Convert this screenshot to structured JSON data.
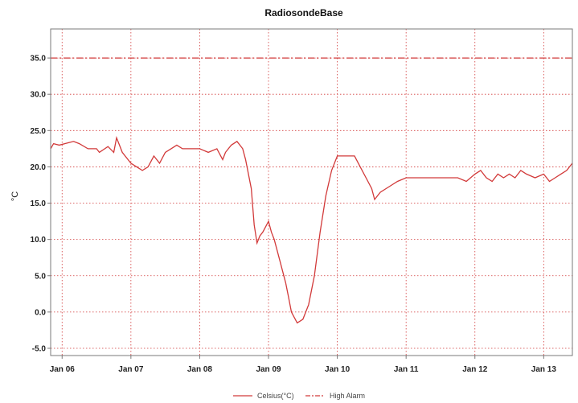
{
  "chart_data": {
    "type": "line",
    "title": "RadiosondeBase",
    "ylabel": "°C",
    "xlabel": "",
    "ylim": [
      -6,
      39
    ],
    "xlim": [
      "2024-01-05T20:00",
      "2024-01-13T10:00"
    ],
    "x_ticks": [
      "Jan 06",
      "Jan 07",
      "Jan 08",
      "Jan 09",
      "Jan 10",
      "Jan 11",
      "Jan 12",
      "Jan 13"
    ],
    "y_ticks": [
      "35.0",
      "30.0",
      "25.0",
      "20.0",
      "15.0",
      "10.0",
      "5.0",
      "0.0",
      "-5.0"
    ],
    "grid": true,
    "legend_position": "bottom",
    "colors": {
      "series": "#d23a3a",
      "alarm": "#d23a3a",
      "grid": "#d23a3a",
      "axis": "#7a7a7a"
    },
    "series": [
      {
        "name": "Celsius(°C)",
        "style": "solid",
        "x": [
          "2024-01-05T20:00",
          "2024-01-05T21:00",
          "2024-01-05T23:00",
          "2024-01-06T04:00",
          "2024-01-06T06:00",
          "2024-01-06T09:00",
          "2024-01-06T12:00",
          "2024-01-06T13:00",
          "2024-01-06T16:00",
          "2024-01-06T18:00",
          "2024-01-06T19:00",
          "2024-01-06T20:00",
          "2024-01-06T21:00",
          "2024-01-07T00:00",
          "2024-01-07T02:00",
          "2024-01-07T04:00",
          "2024-01-07T06:00",
          "2024-01-07T08:00",
          "2024-01-07T10:00",
          "2024-01-07T12:00",
          "2024-01-07T14:00",
          "2024-01-07T16:00",
          "2024-01-07T18:00",
          "2024-01-07T20:00",
          "2024-01-08T00:00",
          "2024-01-08T03:00",
          "2024-01-08T06:00",
          "2024-01-08T08:00",
          "2024-01-08T09:00",
          "2024-01-08T11:00",
          "2024-01-08T13:00",
          "2024-01-08T14:00",
          "2024-01-08T15:00",
          "2024-01-08T16:00",
          "2024-01-08T18:00",
          "2024-01-08T19:00",
          "2024-01-08T20:00",
          "2024-01-08T21:00",
          "2024-01-08T22:00",
          "2024-01-09T00:00",
          "2024-01-09T01:00",
          "2024-01-09T02:00",
          "2024-01-09T04:00",
          "2024-01-09T06:00",
          "2024-01-09T07:00",
          "2024-01-09T08:00",
          "2024-01-09T10:00",
          "2024-01-09T12:00",
          "2024-01-09T14:00",
          "2024-01-09T16:00",
          "2024-01-09T18:00",
          "2024-01-09T20:00",
          "2024-01-09T22:00",
          "2024-01-10T00:00",
          "2024-01-10T02:00",
          "2024-01-10T04:00",
          "2024-01-10T06:00",
          "2024-01-10T08:00",
          "2024-01-10T10:00",
          "2024-01-10T12:00",
          "2024-01-10T13:00",
          "2024-01-10T14:00",
          "2024-01-10T15:00",
          "2024-01-10T17:00",
          "2024-01-10T19:00",
          "2024-01-10T21:00",
          "2024-01-11T00:00",
          "2024-01-11T03:00",
          "2024-01-11T06:00",
          "2024-01-11T09:00",
          "2024-01-11T12:00",
          "2024-01-11T15:00",
          "2024-01-11T18:00",
          "2024-01-11T21:00",
          "2024-01-12T00:00",
          "2024-01-12T02:00",
          "2024-01-12T04:00",
          "2024-01-12T06:00",
          "2024-01-12T08:00",
          "2024-01-12T10:00",
          "2024-01-12T12:00",
          "2024-01-12T14:00",
          "2024-01-12T16:00",
          "2024-01-12T18:00",
          "2024-01-12T21:00",
          "2024-01-13T00:00",
          "2024-01-13T02:00",
          "2024-01-13T04:00",
          "2024-01-13T06:00",
          "2024-01-13T08:00",
          "2024-01-13T10:00"
        ],
        "y": [
          22.5,
          23.2,
          23.0,
          23.5,
          23.2,
          22.5,
          22.5,
          22.0,
          22.8,
          22.0,
          24.0,
          23.0,
          22.0,
          20.5,
          20.0,
          19.5,
          20.0,
          21.5,
          20.5,
          22.0,
          22.5,
          23.0,
          22.5,
          22.5,
          22.5,
          22.0,
          22.5,
          21.0,
          22.0,
          23.0,
          23.5,
          23.0,
          22.5,
          21.0,
          17.0,
          12.0,
          9.5,
          10.5,
          11.0,
          12.5,
          11.0,
          10.0,
          7.0,
          4.0,
          2.0,
          0.0,
          -1.5,
          -1.0,
          1.0,
          5.0,
          11.0,
          16.0,
          19.5,
          21.5,
          21.5,
          21.5,
          21.5,
          20.0,
          18.5,
          17.0,
          15.5,
          16.0,
          16.5,
          17.0,
          17.5,
          18.0,
          18.5,
          18.5,
          18.5,
          18.5,
          18.5,
          18.5,
          18.5,
          18.0,
          19.0,
          19.5,
          18.5,
          18.0,
          19.0,
          18.5,
          19.0,
          18.5,
          19.5,
          19.0,
          18.5,
          19.0,
          18.0,
          18.5,
          19.0,
          19.5,
          20.5
        ]
      },
      {
        "name": "High Alarm",
        "style": "dash-dot",
        "x": [
          "2024-01-05T20:00",
          "2024-01-13T10:00"
        ],
        "y": [
          35.0,
          35.0
        ]
      }
    ]
  }
}
